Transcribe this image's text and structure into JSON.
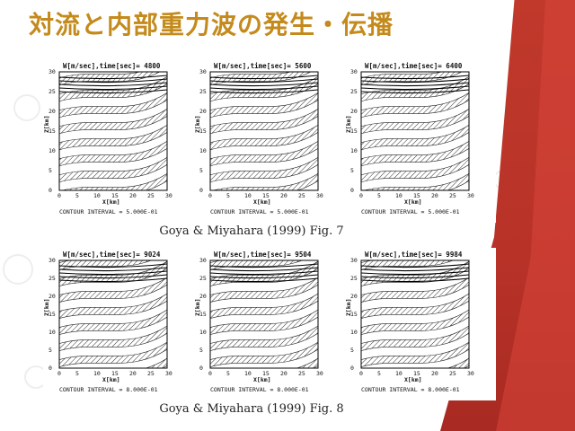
{
  "slide": {
    "title": "対流と内部重力波の発生・伝播",
    "accent_color": "#c48a1c",
    "band_color": "#c0392b"
  },
  "figure7": {
    "caption": "Goya & Miyahara (1999) Fig. 7",
    "contour_interval": "CONTOUR INTERVAL = 5.000E-01",
    "panels": [
      {
        "title": "W[m/sec],time[sec]= 4800"
      },
      {
        "title": "W[m/sec],time[sec]= 5600"
      },
      {
        "title": "W[m/sec],time[sec]= 6400"
      }
    ]
  },
  "figure8": {
    "caption": "Goya & Miyahara (1999) Fig. 8",
    "contour_interval": "CONTOUR INTERVAL = 8.000E-01",
    "panels": [
      {
        "title": "W[m/sec],time[sec]= 9024"
      },
      {
        "title": "W[m/sec],time[sec]= 9504"
      },
      {
        "title": "W[m/sec],time[sec]= 9984"
      }
    ]
  },
  "axes": {
    "xlabel": "X[km]",
    "ylabel": "Z[km]",
    "x_ticks": [
      "0",
      "5",
      "10",
      "15",
      "20",
      "25",
      "30"
    ],
    "y_ticks": [
      "0",
      "5",
      "10",
      "15",
      "20",
      "25",
      "30"
    ]
  }
}
